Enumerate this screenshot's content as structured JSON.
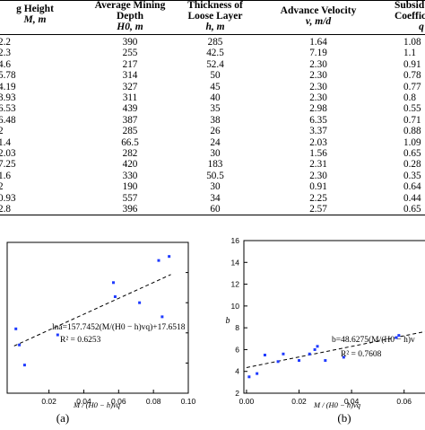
{
  "table": {
    "headers": [
      {
        "title": "g Height",
        "symbol": "M, m"
      },
      {
        "title": "Average Mining Depth",
        "symbol": "H0, m"
      },
      {
        "title": "Thickness of Loose Layer",
        "symbol": "h, m"
      },
      {
        "title": "Advance Velocity",
        "symbol": "v, m/d"
      },
      {
        "title": "Subsid Coeffic",
        "symbol": "q"
      }
    ],
    "rows": [
      [
        "2.2",
        "390",
        "285",
        "1.64",
        "1.08"
      ],
      [
        "2.3",
        "255",
        "42.5",
        "7.19",
        "1.1"
      ],
      [
        "4.6",
        "217",
        "52.4",
        "2.30",
        "0.91"
      ],
      [
        "5.78",
        "314",
        "50",
        "2.30",
        "0.78"
      ],
      [
        "4.19",
        "327",
        "45",
        "2.30",
        "0.77"
      ],
      [
        "3.93",
        "311",
        "40",
        "2.30",
        "0.8"
      ],
      [
        "6.53",
        "439",
        "35",
        "2.98",
        "0.55"
      ],
      [
        "6.48",
        "387",
        "38",
        "6.35",
        "0.71"
      ],
      [
        "2",
        "285",
        "26",
        "3.37",
        "0.88"
      ],
      [
        "1.4",
        "66.5",
        "24",
        "2.03",
        "1.09"
      ],
      [
        "2.03",
        "282",
        "30",
        "1.56",
        "0.65"
      ],
      [
        "7.25",
        "420",
        "183",
        "2.31",
        "0.28"
      ],
      [
        "1.6",
        "330",
        "50.5",
        "2.30",
        "0.35"
      ],
      [
        "2",
        "190",
        "30",
        "0.91",
        "0.64"
      ],
      [
        "0.93",
        "557",
        "34",
        "2.25",
        "0.44"
      ],
      [
        "2.8",
        "396",
        "60",
        "2.57",
        "0.65"
      ]
    ]
  },
  "chart_data": [
    {
      "type": "scatter",
      "panel_label": "(a)",
      "xlabel": "M / (H0 − h)vq",
      "xlim": [
        0,
        0.1
      ],
      "x_ticks": [
        "0.02",
        "0.04",
        "0.06",
        "0.08",
        "0.10"
      ],
      "equation": "lna=157.7452(M/(H0 − h)vq)+17.6518",
      "r2": "R² = 0.6253",
      "points": [
        [
          0.001,
          0.62
        ],
        [
          0.003,
          0.54
        ],
        [
          0.006,
          0.44
        ],
        [
          0.025,
          0.59
        ],
        [
          0.057,
          0.85
        ],
        [
          0.058,
          0.78
        ],
        [
          0.072,
          0.75
        ],
        [
          0.083,
          0.96
        ],
        [
          0.085,
          0.68
        ],
        [
          0.089,
          0.98
        ]
      ],
      "trendline": [
        [
          0.0,
          0.535
        ],
        [
          0.09,
          0.89
        ]
      ]
    },
    {
      "type": "scatter",
      "panel_label": "(b)",
      "ylabel": "b",
      "xlabel": "M / (H0 − h)vq",
      "xlim": [
        0.0,
        0.07
      ],
      "ylim": [
        2,
        16
      ],
      "y_ticks": [
        "2",
        "4",
        "6",
        "8",
        "10",
        "12",
        "14",
        "16"
      ],
      "x_ticks": [
        "0.00",
        "0.02",
        "0.04",
        "0.06"
      ],
      "equation": "b=48.6275(M/(H0 − h)v",
      "r2": "R² = 0.7608",
      "points": [
        [
          0.001,
          3.5
        ],
        [
          0.004,
          3.8
        ],
        [
          0.007,
          5.5
        ],
        [
          0.012,
          4.9
        ],
        [
          0.014,
          5.6
        ],
        [
          0.02,
          5.0
        ],
        [
          0.024,
          5.6
        ],
        [
          0.026,
          6.0
        ],
        [
          0.027,
          6.3
        ],
        [
          0.03,
          5.0
        ],
        [
          0.037,
          5.3
        ],
        [
          0.057,
          7.1
        ],
        [
          0.058,
          7.3
        ]
      ],
      "trendline": [
        [
          0.0,
          4.35
        ],
        [
          0.07,
          7.75
        ]
      ]
    }
  ]
}
